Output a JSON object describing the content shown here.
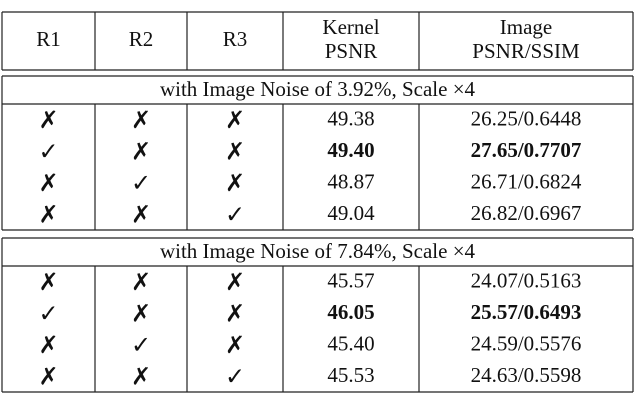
{
  "header": {
    "columns": [
      [
        "R1"
      ],
      [
        "R2"
      ],
      [
        "R3"
      ],
      [
        "Kernel",
        "PSNR"
      ],
      [
        "Image",
        "PSNR/SSIM"
      ]
    ]
  },
  "sections": [
    {
      "title": "with Image Noise of 3.92%, Scale ×4",
      "rows": [
        {
          "cells": [
            "✗",
            "✗",
            "✗",
            "49.38",
            "26.25/0.6448"
          ]
        },
        {
          "cells": [
            "✓",
            "✗",
            "✗",
            "49.40",
            "27.65/0.7707"
          ],
          "bold": true
        },
        {
          "cells": [
            "✗",
            "✓",
            "✗",
            "48.87",
            "26.71/0.6824"
          ]
        },
        {
          "cells": [
            "✗",
            "✗",
            "✓",
            "49.04",
            "26.82/0.6967"
          ]
        }
      ]
    },
    {
      "title": "with Image Noise of 7.84%, Scale ×4",
      "rows": [
        {
          "cells": [
            "✗",
            "✗",
            "✗",
            "45.57",
            "24.07/0.5163"
          ]
        },
        {
          "cells": [
            "✓",
            "✗",
            "✗",
            "46.05",
            "25.57/0.6493"
          ],
          "bold": true
        },
        {
          "cells": [
            "✗",
            "✓",
            "✗",
            "45.40",
            "24.59/0.5576"
          ]
        },
        {
          "cells": [
            "✗",
            "✗",
            "✓",
            "45.53",
            "24.63/0.5598"
          ]
        }
      ]
    }
  ]
}
